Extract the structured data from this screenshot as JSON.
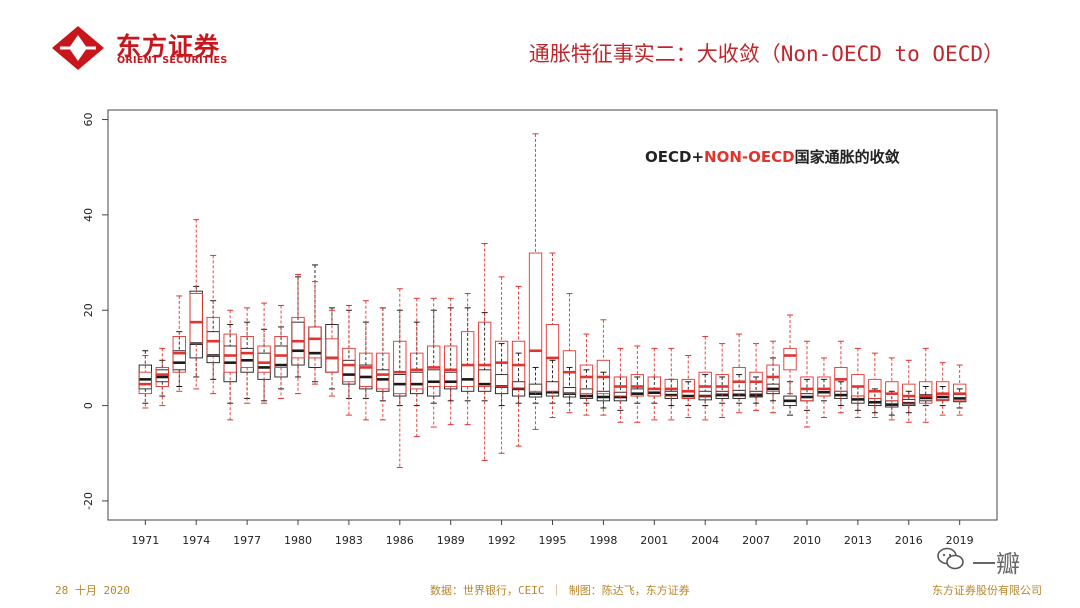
{
  "header": {
    "logo_cn": "东方证券",
    "logo_en": "ORIENT SECURITIES",
    "title": "通胀特征事实二：大收敛（Non-OECD to OECD）"
  },
  "footer": {
    "date": "28 十月 2020",
    "source": "数据：世界银行，CEIC ｜ 制图：陈达飞，东方证券",
    "company": "东方证券股份有限公司"
  },
  "watermark": {
    "text": "一瓣"
  },
  "colors": {
    "brand": "#c8161d",
    "oecd": "#1a1a1a",
    "non_oecd": "#e0342f"
  },
  "chart_data": {
    "type": "boxplot",
    "title_parts": [
      "OECD+",
      "NON-OECD",
      "国家通胀的收敛"
    ],
    "ylim": [
      -24,
      62
    ],
    "yticks": [
      -20,
      0,
      20,
      40,
      60
    ],
    "xlim": [
      1968.8,
      2021.2
    ],
    "xticks": [
      1971,
      1974,
      1977,
      1980,
      1983,
      1986,
      1989,
      1992,
      1995,
      1998,
      2001,
      2004,
      2007,
      2010,
      2013,
      2016,
      2019
    ],
    "series": [
      {
        "name": "OECD",
        "color": "#1a1a1a",
        "boxes": [
          {
            "year": 1971,
            "q1": 3.5,
            "med": 5.5,
            "q3": 8.5,
            "lo": 0.5,
            "hi": 11.5
          },
          {
            "year": 1972,
            "q1": 5.0,
            "med": 6.0,
            "q3": 7.5,
            "lo": 2.0,
            "hi": 9.5
          },
          {
            "year": 1973,
            "q1": 7.5,
            "med": 9.0,
            "q3": 11.5,
            "lo": 4.0,
            "hi": 15.5
          },
          {
            "year": 1974,
            "q1": 10.0,
            "med": 13.0,
            "q3": 24.0,
            "lo": 6.0,
            "hi": 25.0
          },
          {
            "year": 1975,
            "q1": 9.0,
            "med": 10.5,
            "q3": 15.5,
            "lo": 5.5,
            "hi": 22.0
          },
          {
            "year": 1976,
            "q1": 5.0,
            "med": 9.0,
            "q3": 12.5,
            "lo": 0.5,
            "hi": 17.0
          },
          {
            "year": 1977,
            "q1": 7.0,
            "med": 9.5,
            "q3": 12.0,
            "lo": 1.5,
            "hi": 17.5
          },
          {
            "year": 1978,
            "q1": 5.5,
            "med": 8.0,
            "q3": 11.0,
            "lo": 1.0,
            "hi": 16.0
          },
          {
            "year": 1979,
            "q1": 6.0,
            "med": 8.5,
            "q3": 12.5,
            "lo": 3.5,
            "hi": 16.5
          },
          {
            "year": 1980,
            "q1": 8.5,
            "med": 11.5,
            "q3": 17.5,
            "lo": 6.0,
            "hi": 27.0
          },
          {
            "year": 1981,
            "q1": 8.0,
            "med": 11.0,
            "q3": 16.5,
            "lo": 5.0,
            "hi": 29.5
          },
          {
            "year": 1982,
            "q1": 7.0,
            "med": 10.0,
            "q3": 17.0,
            "lo": 3.5,
            "hi": 20.5
          },
          {
            "year": 1983,
            "q1": 4.5,
            "med": 6.5,
            "q3": 9.5,
            "lo": 1.5,
            "hi": 20.0
          },
          {
            "year": 1984,
            "q1": 3.5,
            "med": 6.0,
            "q3": 8.5,
            "lo": 1.5,
            "hi": 17.5
          },
          {
            "year": 1985,
            "q1": 3.0,
            "med": 5.5,
            "q3": 7.5,
            "lo": 1.0,
            "hi": 20.5
          },
          {
            "year": 1986,
            "q1": 2.0,
            "med": 4.5,
            "q3": 6.5,
            "lo": 0.0,
            "hi": 20.0
          },
          {
            "year": 1987,
            "q1": 2.5,
            "med": 4.5,
            "q3": 7.0,
            "lo": 0.0,
            "hi": 17.5
          },
          {
            "year": 1988,
            "q1": 2.0,
            "med": 5.0,
            "q3": 7.5,
            "lo": 0.5,
            "hi": 20.0
          },
          {
            "year": 1989,
            "q1": 3.5,
            "med": 5.0,
            "q3": 7.0,
            "lo": 1.0,
            "hi": 20.5
          },
          {
            "year": 1990,
            "q1": 3.0,
            "med": 5.5,
            "q3": 8.5,
            "lo": 1.0,
            "hi": 20.5
          },
          {
            "year": 1991,
            "q1": 3.0,
            "med": 4.5,
            "q3": 7.5,
            "lo": 1.0,
            "hi": 19.5
          },
          {
            "year": 1992,
            "q1": 2.5,
            "med": 4.0,
            "q3": 6.5,
            "lo": 0.0,
            "hi": 13.0
          },
          {
            "year": 1993,
            "q1": 2.0,
            "med": 3.5,
            "q3": 5.0,
            "lo": 0.5,
            "hi": 11.0
          },
          {
            "year": 1994,
            "q1": 1.8,
            "med": 2.5,
            "q3": 4.5,
            "lo": 0.5,
            "hi": 8.0
          },
          {
            "year": 1995,
            "q1": 2.0,
            "med": 2.8,
            "q3": 5.0,
            "lo": 0.5,
            "hi": 9.5
          },
          {
            "year": 1996,
            "q1": 1.8,
            "med": 2.5,
            "q3": 3.8,
            "lo": 0.5,
            "hi": 8.0
          },
          {
            "year": 1997,
            "q1": 1.5,
            "med": 2.0,
            "q3": 3.5,
            "lo": 0.5,
            "hi": 7.5
          },
          {
            "year": 1998,
            "q1": 1.0,
            "med": 1.8,
            "q3": 3.0,
            "lo": -0.5,
            "hi": 7.0
          },
          {
            "year": 1999,
            "q1": 1.0,
            "med": 1.8,
            "q3": 2.8,
            "lo": -1.0,
            "hi": 6.0
          },
          {
            "year": 2000,
            "q1": 2.0,
            "med": 2.5,
            "q3": 3.5,
            "lo": 0.5,
            "hi": 6.0
          },
          {
            "year": 2001,
            "q1": 2.0,
            "med": 2.7,
            "q3": 3.5,
            "lo": 0.5,
            "hi": 6.0
          },
          {
            "year": 2002,
            "q1": 1.5,
            "med": 2.2,
            "q3": 3.0,
            "lo": 0.0,
            "hi": 5.5
          },
          {
            "year": 2003,
            "q1": 1.5,
            "med": 2.0,
            "q3": 3.0,
            "lo": 0.0,
            "hi": 5.0
          },
          {
            "year": 2004,
            "q1": 1.2,
            "med": 2.0,
            "q3": 3.0,
            "lo": 0.0,
            "hi": 6.5
          },
          {
            "year": 2005,
            "q1": 1.5,
            "med": 2.2,
            "q3": 3.0,
            "lo": 0.5,
            "hi": 6.0
          },
          {
            "year": 2006,
            "q1": 1.5,
            "med": 2.2,
            "q3": 3.2,
            "lo": 0.5,
            "hi": 6.5
          },
          {
            "year": 2007,
            "q1": 1.8,
            "med": 2.2,
            "q3": 3.0,
            "lo": 0.5,
            "hi": 6.0
          },
          {
            "year": 2008,
            "q1": 2.5,
            "med": 3.5,
            "q3": 4.5,
            "lo": 1.0,
            "hi": 10.0
          },
          {
            "year": 2009,
            "q1": 0.0,
            "med": 1.0,
            "q3": 2.0,
            "lo": -2.0,
            "hi": 5.0
          },
          {
            "year": 2010,
            "q1": 1.0,
            "med": 1.8,
            "q3": 2.5,
            "lo": -1.0,
            "hi": 5.5
          },
          {
            "year": 2011,
            "q1": 2.0,
            "med": 2.8,
            "q3": 3.5,
            "lo": 1.0,
            "hi": 5.5
          },
          {
            "year": 2012,
            "q1": 1.5,
            "med": 2.2,
            "q3": 3.0,
            "lo": 0.0,
            "hi": 5.0
          },
          {
            "year": 2013,
            "q1": 0.5,
            "med": 1.3,
            "q3": 2.0,
            "lo": -1.0,
            "hi": 4.0
          },
          {
            "year": 2014,
            "q1": 0.0,
            "med": 0.7,
            "q3": 1.5,
            "lo": -1.5,
            "hi": 3.5
          },
          {
            "year": 2015,
            "q1": -0.3,
            "med": 0.2,
            "q3": 1.0,
            "lo": -2.0,
            "hi": 3.0
          },
          {
            "year": 2016,
            "q1": 0.0,
            "med": 0.5,
            "q3": 1.3,
            "lo": -1.5,
            "hi": 3.0
          },
          {
            "year": 2017,
            "q1": 1.0,
            "med": 1.6,
            "q3": 2.3,
            "lo": 0.0,
            "hi": 4.0
          },
          {
            "year": 2018,
            "q1": 1.2,
            "med": 1.8,
            "q3": 2.5,
            "lo": 0.0,
            "hi": 4.0
          },
          {
            "year": 2019,
            "q1": 0.8,
            "med": 1.5,
            "q3": 2.3,
            "lo": -0.5,
            "hi": 3.5
          }
        ]
      },
      {
        "name": "NON-OECD",
        "color": "#e0342f",
        "boxes": [
          {
            "year": 1971,
            "q1": 2.5,
            "med": 4.5,
            "q3": 7.0,
            "lo": -0.5,
            "hi": 10.5
          },
          {
            "year": 1972,
            "q1": 4.0,
            "med": 6.5,
            "q3": 8.0,
            "lo": 0.0,
            "hi": 12.0
          },
          {
            "year": 1973,
            "q1": 7.0,
            "med": 11.0,
            "q3": 14.5,
            "lo": 3.0,
            "hi": 23.0
          },
          {
            "year": 1974,
            "q1": 13.0,
            "med": 17.5,
            "q3": 23.5,
            "lo": 3.5,
            "hi": 39.0
          },
          {
            "year": 1975,
            "q1": 10.5,
            "med": 13.5,
            "q3": 18.5,
            "lo": 2.5,
            "hi": 31.5
          },
          {
            "year": 1976,
            "q1": 7.0,
            "med": 10.5,
            "q3": 15.0,
            "lo": -3.0,
            "hi": 20.0
          },
          {
            "year": 1977,
            "q1": 8.0,
            "med": 11.0,
            "q3": 14.5,
            "lo": 0.5,
            "hi": 20.5
          },
          {
            "year": 1978,
            "q1": 7.0,
            "med": 9.0,
            "q3": 12.5,
            "lo": 0.5,
            "hi": 21.5
          },
          {
            "year": 1979,
            "q1": 8.0,
            "med": 10.5,
            "q3": 14.5,
            "lo": 1.5,
            "hi": 21.0
          },
          {
            "year": 1980,
            "q1": 10.0,
            "med": 13.5,
            "q3": 18.5,
            "lo": 2.5,
            "hi": 27.5
          },
          {
            "year": 1981,
            "q1": 10.0,
            "med": 14.0,
            "q3": 16.5,
            "lo": 4.5,
            "hi": 26.0
          },
          {
            "year": 1982,
            "q1": 7.0,
            "med": 10.0,
            "q3": 14.0,
            "lo": 2.0,
            "hi": 20.0
          },
          {
            "year": 1983,
            "q1": 5.0,
            "med": 8.5,
            "q3": 12.0,
            "lo": -2.0,
            "hi": 21.0
          },
          {
            "year": 1984,
            "q1": 4.0,
            "med": 8.0,
            "q3": 11.0,
            "lo": -3.0,
            "hi": 22.0
          },
          {
            "year": 1985,
            "q1": 3.5,
            "med": 6.5,
            "q3": 11.0,
            "lo": -3.0,
            "hi": 20.5
          },
          {
            "year": 1986,
            "q1": 2.5,
            "med": 7.0,
            "q3": 13.5,
            "lo": -13.0,
            "hi": 24.5
          },
          {
            "year": 1987,
            "q1": 3.5,
            "med": 7.5,
            "q3": 11.0,
            "lo": -6.5,
            "hi": 22.5
          },
          {
            "year": 1988,
            "q1": 4.0,
            "med": 8.0,
            "q3": 12.5,
            "lo": -4.5,
            "hi": 22.5
          },
          {
            "year": 1989,
            "q1": 4.0,
            "med": 7.5,
            "q3": 12.5,
            "lo": -4.0,
            "hi": 22.5
          },
          {
            "year": 1990,
            "q1": 4.0,
            "med": 8.5,
            "q3": 15.5,
            "lo": -4.0,
            "hi": 23.5
          },
          {
            "year": 1991,
            "q1": 4.0,
            "med": 8.5,
            "q3": 17.5,
            "lo": -11.5,
            "hi": 34.0
          },
          {
            "year": 1992,
            "q1": 4.0,
            "med": 9.0,
            "q3": 13.5,
            "lo": -10.0,
            "hi": 27.0
          },
          {
            "year": 1993,
            "q1": 3.5,
            "med": 8.5,
            "q3": 13.5,
            "lo": -8.5,
            "hi": 25.0
          },
          {
            "year": 1994,
            "q1": 3.0,
            "med": 11.5,
            "q3": 32.0,
            "lo": -5.0,
            "hi": 57.0
          },
          {
            "year": 1995,
            "q1": 3.0,
            "med": 10.0,
            "q3": 17.0,
            "lo": -2.5,
            "hi": 32.0
          },
          {
            "year": 1996,
            "q1": 2.5,
            "med": 7.0,
            "q3": 11.5,
            "lo": -1.5,
            "hi": 23.5
          },
          {
            "year": 1997,
            "q1": 2.5,
            "med": 6.0,
            "q3": 8.5,
            "lo": -2.0,
            "hi": 15.0
          },
          {
            "year": 1998,
            "q1": 2.5,
            "med": 6.0,
            "q3": 9.5,
            "lo": -2.0,
            "hi": 18.0
          },
          {
            "year": 1999,
            "q1": 2.0,
            "med": 4.0,
            "q3": 6.0,
            "lo": -3.5,
            "hi": 12.0
          },
          {
            "year": 2000,
            "q1": 2.0,
            "med": 4.0,
            "q3": 6.5,
            "lo": -3.5,
            "hi": 12.5
          },
          {
            "year": 2001,
            "q1": 2.0,
            "med": 3.5,
            "q3": 6.0,
            "lo": -3.0,
            "hi": 12.0
          },
          {
            "year": 2002,
            "q1": 2.0,
            "med": 3.5,
            "q3": 5.5,
            "lo": -3.0,
            "hi": 12.0
          },
          {
            "year": 2003,
            "q1": 1.5,
            "med": 3.0,
            "q3": 5.5,
            "lo": -2.5,
            "hi": 10.5
          },
          {
            "year": 2004,
            "q1": 2.0,
            "med": 4.0,
            "q3": 7.0,
            "lo": -3.0,
            "hi": 14.5
          },
          {
            "year": 2005,
            "q1": 2.5,
            "med": 4.0,
            "q3": 6.5,
            "lo": -2.5,
            "hi": 13.0
          },
          {
            "year": 2006,
            "q1": 2.5,
            "med": 5.0,
            "q3": 8.0,
            "lo": -1.5,
            "hi": 15.0
          },
          {
            "year": 2007,
            "q1": 2.5,
            "med": 5.0,
            "q3": 7.0,
            "lo": -1.0,
            "hi": 13.0
          },
          {
            "year": 2008,
            "q1": 3.0,
            "med": 6.0,
            "q3": 8.5,
            "lo": -1.5,
            "hi": 13.5
          },
          {
            "year": 2009,
            "q1": 7.5,
            "med": 10.5,
            "q3": 12.0,
            "lo": 2.5,
            "hi": 19.0
          },
          {
            "year": 2010,
            "q1": 1.0,
            "med": 3.5,
            "q3": 6.0,
            "lo": -4.5,
            "hi": 13.5
          },
          {
            "year": 2011,
            "q1": 2.0,
            "med": 3.5,
            "q3": 6.0,
            "lo": -2.5,
            "hi": 10.0
          },
          {
            "year": 2012,
            "q1": 3.0,
            "med": 5.5,
            "q3": 8.0,
            "lo": -1.5,
            "hi": 13.5
          },
          {
            "year": 2013,
            "q1": 2.0,
            "med": 4.0,
            "q3": 6.5,
            "lo": -2.5,
            "hi": 12.0
          },
          {
            "year": 2014,
            "q1": 1.5,
            "med": 3.0,
            "q3": 5.5,
            "lo": -2.5,
            "hi": 11.0
          },
          {
            "year": 2015,
            "q1": 1.0,
            "med": 2.5,
            "q3": 5.0,
            "lo": -3.0,
            "hi": 10.0
          },
          {
            "year": 2016,
            "q1": 0.5,
            "med": 2.0,
            "q3": 4.5,
            "lo": -3.5,
            "hi": 9.5
          },
          {
            "year": 2017,
            "q1": 0.5,
            "med": 2.0,
            "q3": 5.0,
            "lo": -3.5,
            "hi": 12.0
          },
          {
            "year": 2018,
            "q1": 1.0,
            "med": 2.5,
            "q3": 5.0,
            "lo": -2.0,
            "hi": 9.0
          },
          {
            "year": 2019,
            "q1": 1.0,
            "med": 2.5,
            "q3": 4.5,
            "lo": -2.0,
            "hi": 8.5
          }
        ]
      }
    ]
  }
}
